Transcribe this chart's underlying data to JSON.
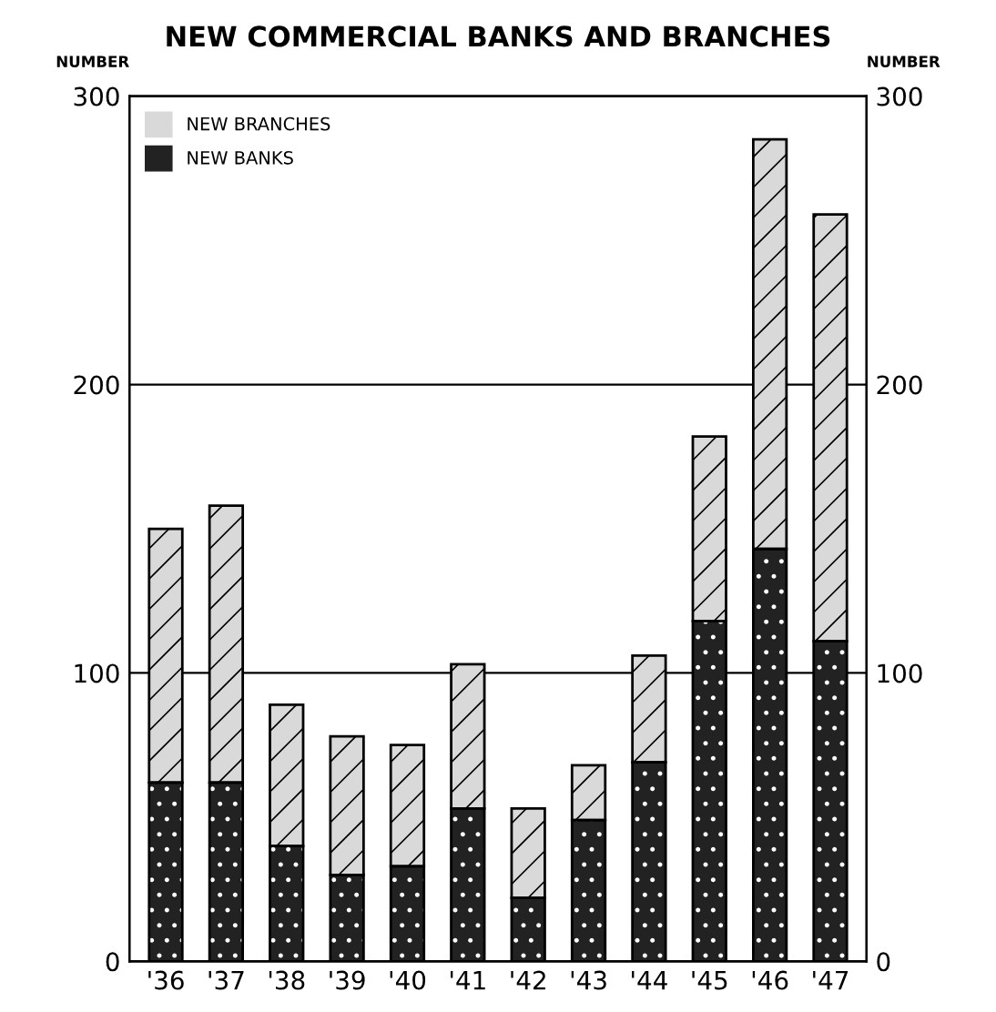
{
  "chart_data": {
    "type": "bar",
    "title": "NEW COMMERCIAL BANKS AND BRANCHES",
    "ylabel": "NUMBER",
    "y2label": "NUMBER",
    "categories": [
      "'36",
      "'37",
      "'38",
      "'39",
      "'40",
      "'41",
      "'42",
      "'43",
      "'44",
      "'45",
      "'46",
      "'47"
    ],
    "stacked": true,
    "series": [
      {
        "name": "NEW BANKS",
        "color": "#222222",
        "values": [
          62,
          62,
          40,
          30,
          33,
          53,
          22,
          49,
          69,
          118,
          143,
          111
        ]
      },
      {
        "name": "NEW BRANCHES",
        "color": "#d9d9d9",
        "values": [
          88,
          96,
          49,
          48,
          42,
          50,
          31,
          19,
          37,
          64,
          142,
          148
        ]
      }
    ],
    "ylim": [
      0,
      300
    ],
    "yticks": [
      0,
      100,
      200,
      300
    ],
    "y2lim": [
      0,
      300
    ],
    "y2ticks": [
      0,
      100,
      200,
      300
    ],
    "grid": "y",
    "legend": "top left"
  }
}
